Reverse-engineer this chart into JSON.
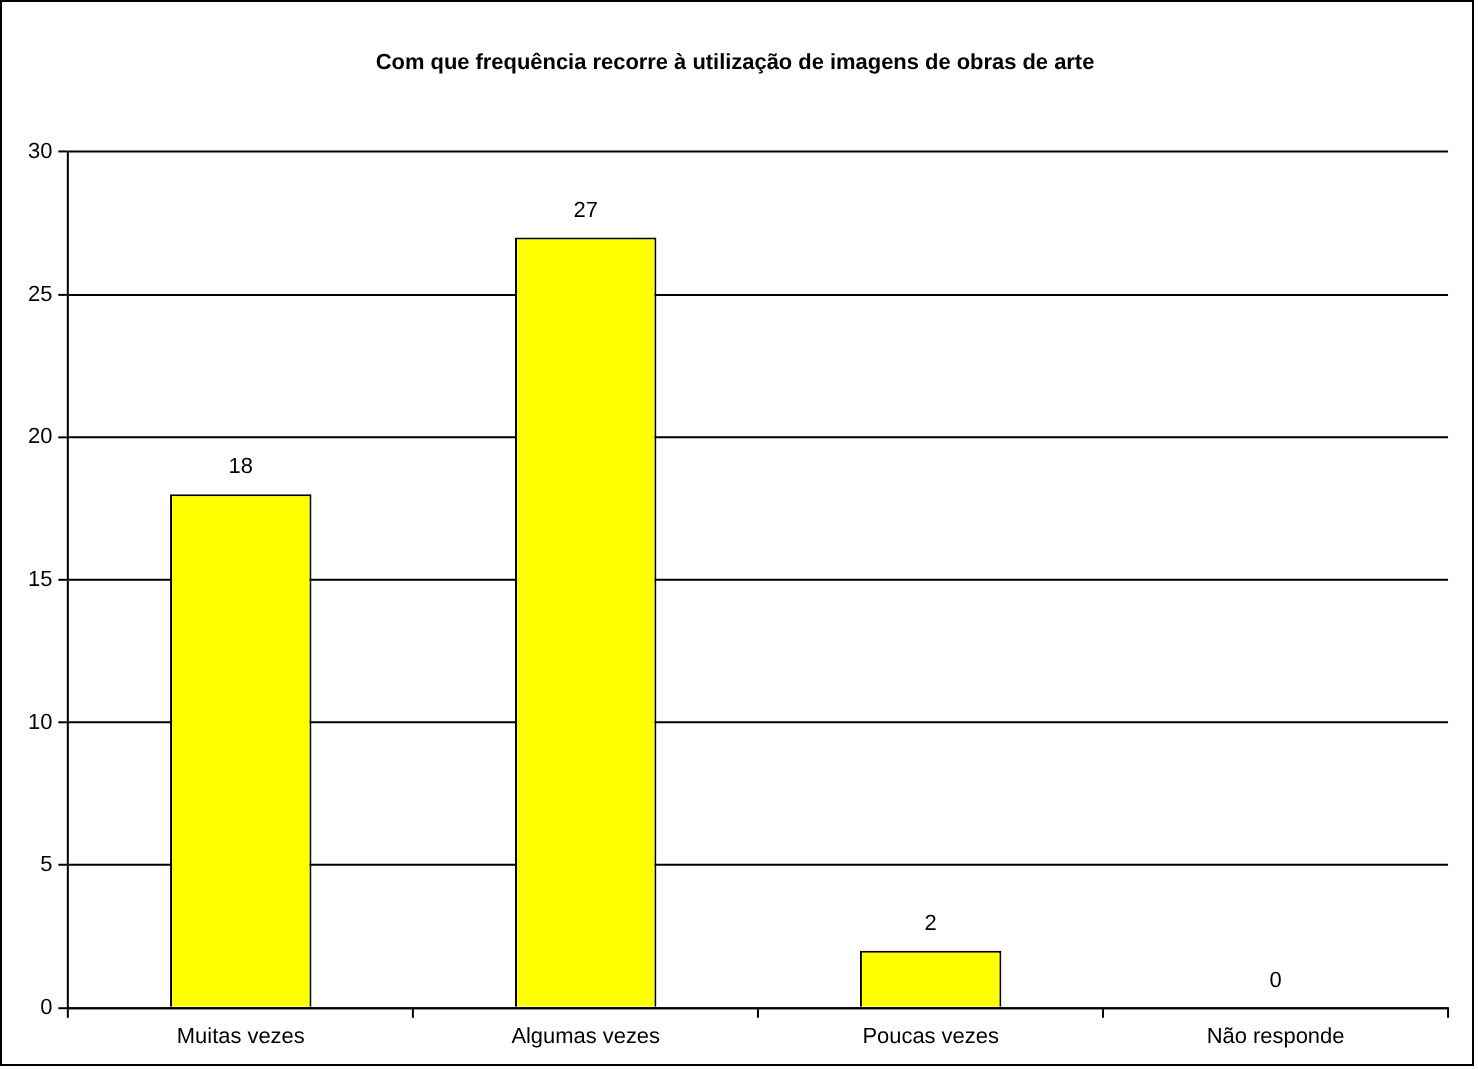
{
  "chart_data": {
    "type": "bar",
    "title": "Com que frequência recorre à utilização de imagens de obras de arte",
    "categories": [
      "Muitas vezes",
      "Algumas vezes",
      "Poucas vezes",
      "Não responde"
    ],
    "values": [
      18,
      27,
      2,
      0
    ],
    "color": "#ffff00",
    "ylim": [
      0,
      30
    ],
    "yticks": [
      0,
      5,
      10,
      15,
      20,
      25,
      30
    ],
    "grid": "y",
    "data_labels": true,
    "legend": false
  }
}
